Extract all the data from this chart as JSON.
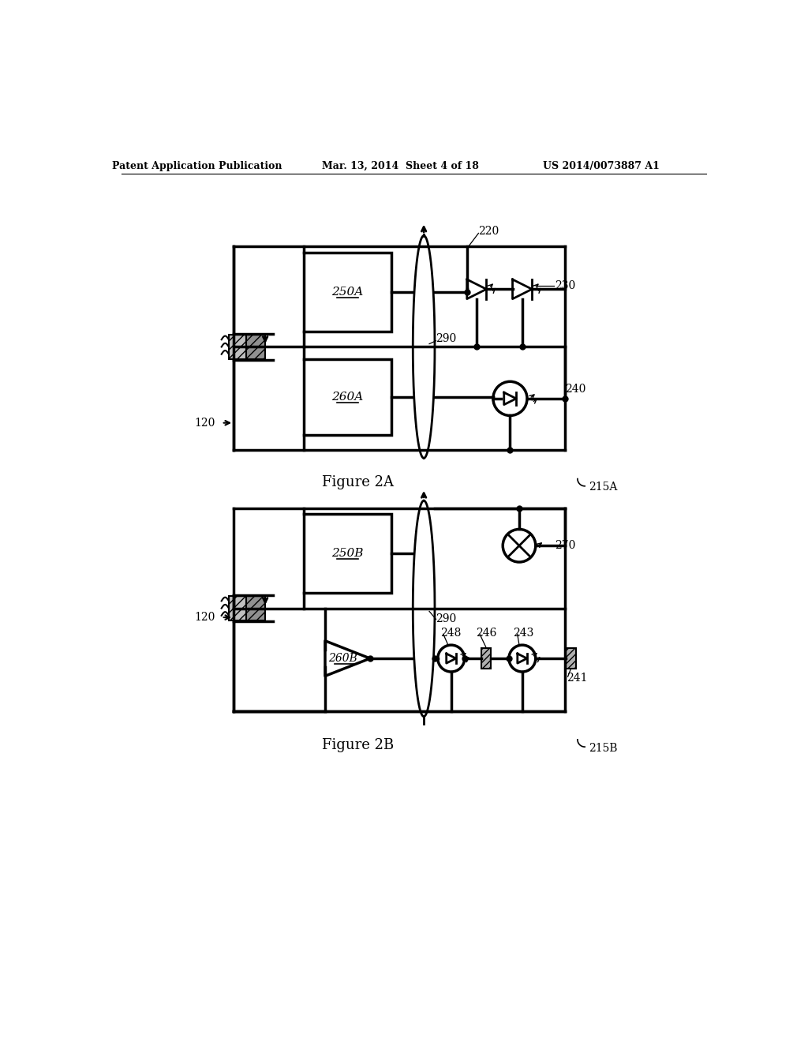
{
  "bg_color": "#ffffff",
  "header_left": "Patent Application Publication",
  "header_mid": "Mar. 13, 2014  Sheet 4 of 18",
  "header_right": "US 2014/0073887 A1",
  "fig2a_label": "Figure 2A",
  "fig2b_label": "Figure 2B",
  "label_215A": "215A",
  "label_215B": "215B",
  "label_120": "120",
  "label_220": "220",
  "label_230": "230",
  "label_240": "240",
  "label_250A": "250A",
  "label_260A": "260A",
  "label_290_a": "290",
  "label_250B": "250B",
  "label_260B": "260B",
  "label_270": "270",
  "label_290_b": "290",
  "label_248": "248",
  "label_246": "246",
  "label_243": "243",
  "label_241": "241"
}
